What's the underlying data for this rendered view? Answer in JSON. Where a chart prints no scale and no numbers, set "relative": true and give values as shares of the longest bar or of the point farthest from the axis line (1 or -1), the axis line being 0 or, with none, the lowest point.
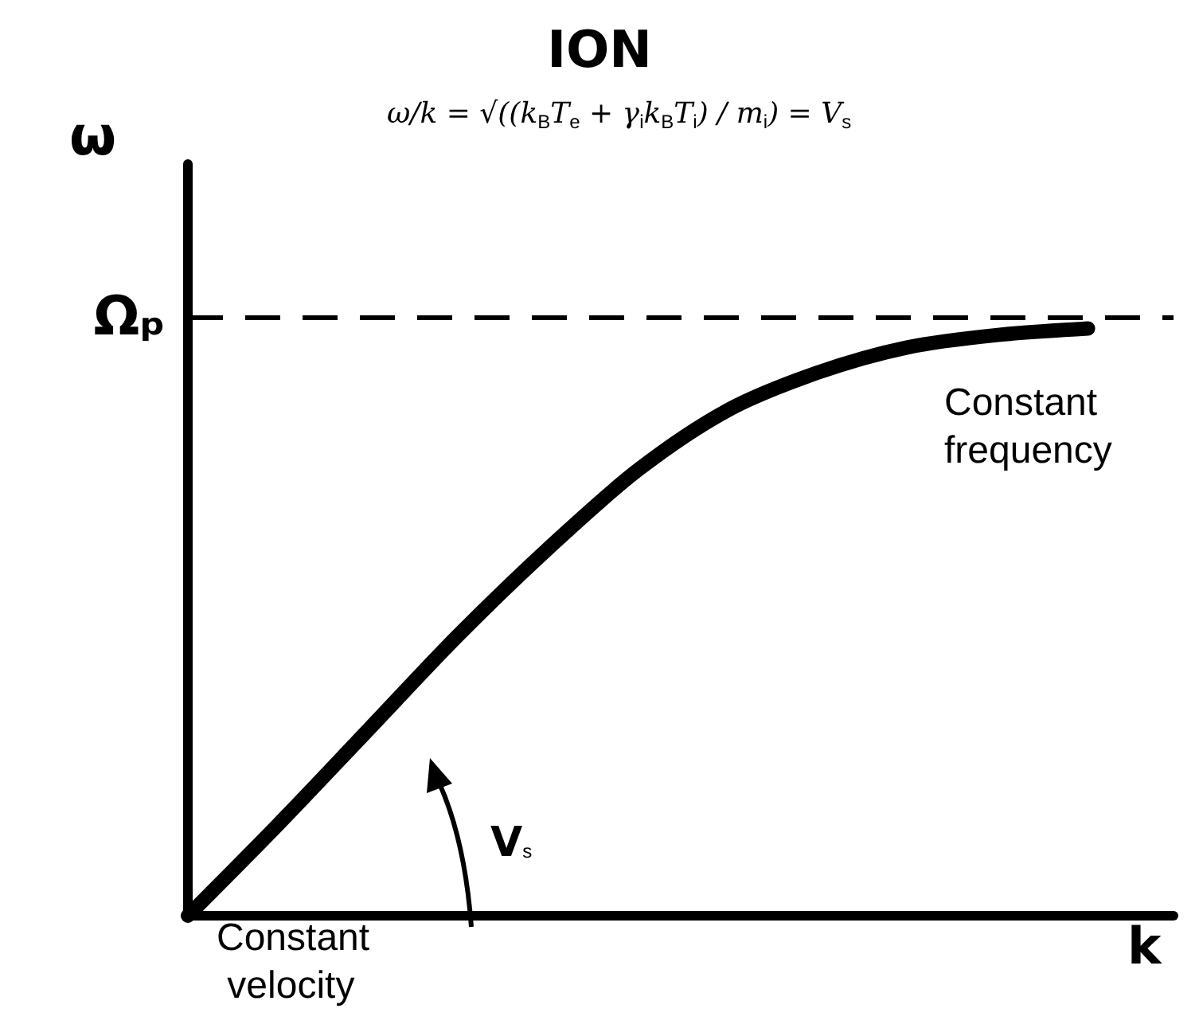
{
  "chart_data": {
    "type": "line",
    "title": "ION",
    "xlabel": "k",
    "ylabel": "ω",
    "relative": true,
    "categories": [
      null,
      null,
      null,
      null,
      null,
      null,
      null,
      null,
      null,
      null,
      null
    ],
    "series": [
      {
        "color": "#000000",
        "values": [
          0,
          0.155,
          0.316,
          0.477,
          0.625,
          0.759,
          0.861,
          0.925,
          0.968,
          0.989,
          1
        ]
      }
    ],
    "ref_lines": [
      {
        "axis": "y",
        "value": 1.02,
        "label": "Ωₚ",
        "color": "#000000",
        "line_style": "dashed"
      }
    ],
    "marker": "none",
    "line_style": "solid",
    "annotations": [
      "ω/k = √((k$_{B}$T$_{e}$ + γ$_{i}$k$_{B}$T$_{i}$) / m$_{i}$) = V$_{s}$",
      "Constant frequency",
      "V$_{s}$",
      "Constant velocity"
    ]
  }
}
